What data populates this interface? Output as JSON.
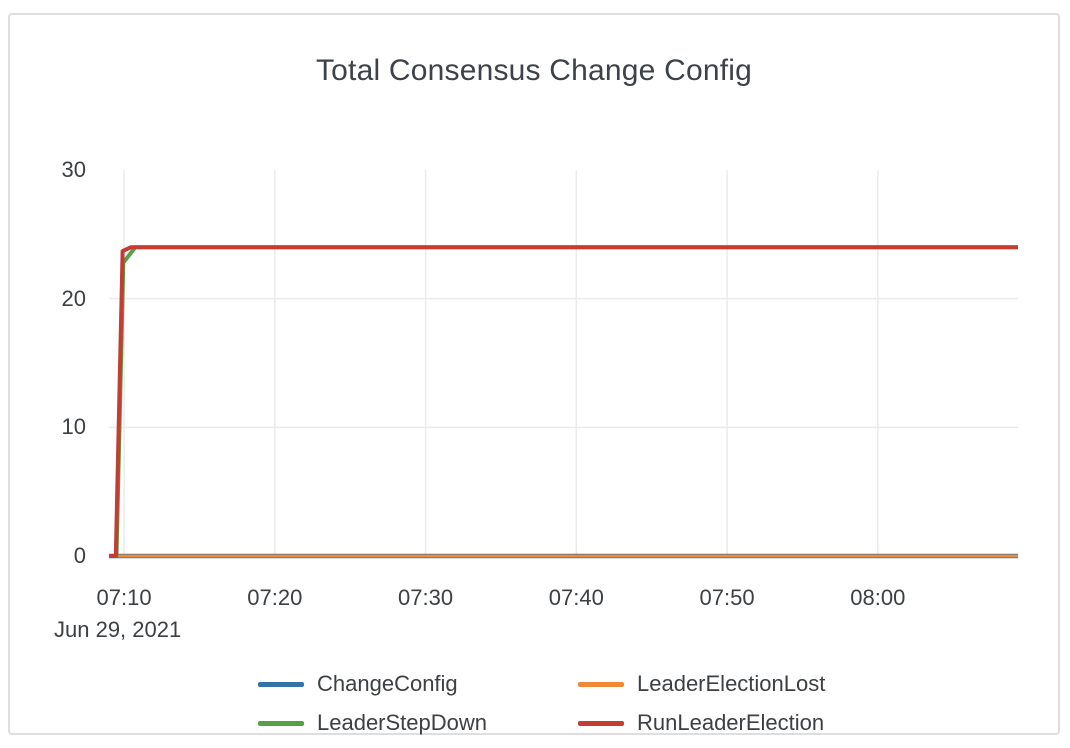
{
  "chart_data": {
    "type": "line",
    "title": "Total Consensus Change Config",
    "x_axis_date_label": "Jun 29, 2021",
    "x_unit": "time of day (minutes after 07:00)",
    "x_range": [
      9.0,
      69.3
    ],
    "x_ticks": [
      {
        "value": 10,
        "label": "07:10"
      },
      {
        "value": 20,
        "label": "07:20"
      },
      {
        "value": 30,
        "label": "07:30"
      },
      {
        "value": 40,
        "label": "07:40"
      },
      {
        "value": 50,
        "label": "07:50"
      },
      {
        "value": 60,
        "label": "08:00"
      }
    ],
    "y_range": [
      0,
      30
    ],
    "y_ticks": [
      0,
      10,
      20,
      30
    ],
    "grid_y_values": [
      10,
      20
    ],
    "grid_color": "#ebebeb",
    "legend_position": "bottom",
    "series": [
      {
        "name": "ChangeConfig",
        "color": "#3274a8",
        "points": [
          [
            9.0,
            0
          ],
          [
            69.3,
            0
          ]
        ]
      },
      {
        "name": "LeaderElectionLost",
        "color": "#ef8837",
        "points": [
          [
            9.0,
            0
          ],
          [
            69.3,
            0
          ]
        ]
      },
      {
        "name": "LeaderStepDown",
        "color": "#55a146",
        "points": [
          [
            9.0,
            0
          ],
          [
            9.5,
            0
          ],
          [
            9.95,
            22.8
          ],
          [
            10.75,
            24
          ],
          [
            69.3,
            24
          ]
        ]
      },
      {
        "name": "RunLeaderElection",
        "color": "#c33d33",
        "points": [
          [
            9.0,
            0
          ],
          [
            9.45,
            0
          ],
          [
            9.9,
            23.7
          ],
          [
            10.45,
            24
          ],
          [
            69.3,
            24
          ]
        ]
      }
    ]
  }
}
